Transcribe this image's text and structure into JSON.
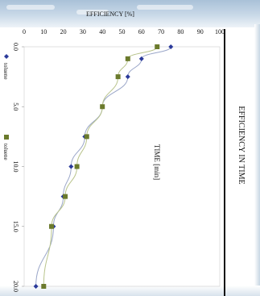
{
  "chart_data": {
    "type": "line",
    "title": "EFFICIENCY IN TIME",
    "xlabel": "TIME [min]",
    "ylabel": "EFFICIENCY  [%]",
    "x_ticks": [
      "0.0",
      "5.0",
      "10.0",
      "15.0",
      "20.0"
    ],
    "y_ticks": [
      "0",
      "10",
      "20",
      "30",
      "40",
      "50",
      "60",
      "70",
      "80",
      "90",
      "100"
    ],
    "xlim": [
      0,
      20
    ],
    "ylim": [
      0,
      100
    ],
    "grid": false,
    "legend_position": "right",
    "series": [
      {
        "name": "toluene",
        "marker": "diamond",
        "color": "#2b3a9a",
        "line_color": "#9aa6c8",
        "x": [
          0,
          1,
          2.5,
          5,
          7.5,
          10,
          12.5,
          15,
          20
        ],
        "y": [
          75,
          60,
          53,
          40,
          31,
          24,
          20,
          15,
          6
        ]
      },
      {
        "name": "toluene",
        "marker": "square",
        "color": "#6b7a2c",
        "line_color": "#b9c48c",
        "x": [
          0,
          1,
          2.5,
          5,
          7.5,
          10,
          12.5,
          15,
          20
        ],
        "y": [
          68,
          53,
          48,
          40,
          32,
          27,
          21,
          14,
          10
        ]
      }
    ]
  }
}
